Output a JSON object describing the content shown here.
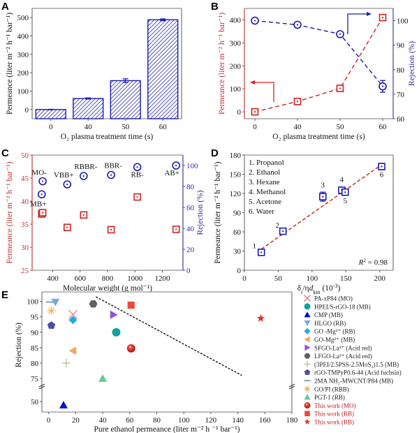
{
  "chart_data": [
    {
      "id": "A",
      "type": "bar",
      "panel_label": "A",
      "categories": [
        "0",
        "40",
        "50",
        "60"
      ],
      "values": [
        0,
        60,
        157,
        488
      ],
      "errors": [
        2,
        3,
        10,
        5
      ],
      "xlabel": "O₂ plasma treatment time (s)",
      "ylabel": "Permeance (liter m⁻² h⁻¹ bar⁻¹)",
      "ylim": [
        -50,
        550
      ],
      "yticks": [
        0,
        100,
        200,
        300,
        400,
        500
      ],
      "color": "#1a1ab0",
      "fill": "hatched"
    },
    {
      "id": "B",
      "type": "line",
      "panel_label": "B",
      "x": [
        "0",
        "40",
        "50",
        "60"
      ],
      "xlabel": "O₂ plasma treatment time (s)",
      "ylabel": "Permeance (liter m⁻² h⁻¹ bar⁻¹)",
      "ylabel_right": "Rejection (%)",
      "ylim": [
        -30,
        450
      ],
      "ylim_right": [
        60,
        105
      ],
      "yticks": [
        0,
        100,
        200,
        300,
        400
      ],
      "yticks_right": [
        60,
        70,
        80,
        90,
        100
      ],
      "series": [
        {
          "name": "Permeance",
          "axis": "left",
          "values": [
            0,
            45,
            102,
            410
          ],
          "errors": [
            0,
            3,
            5,
            0
          ],
          "color": "#d02020",
          "marker": "square-open"
        },
        {
          "name": "Rejection",
          "axis": "right",
          "values": [
            100,
            98.3,
            94.5,
            73.2
          ],
          "errors": [
            0,
            0.3,
            0.5,
            2.4
          ],
          "color": "#1a1aa0",
          "marker": "circle-open"
        }
      ]
    },
    {
      "id": "C",
      "type": "scatter",
      "panel_label": "C",
      "xlabel": "Molecular weight (g mol⁻¹)",
      "ylabel": "Permeance (liter m⁻² h⁻¹ bar⁻¹)",
      "ylabel_right": "Rejection (%)",
      "xlim": [
        250,
        1350
      ],
      "xticks": [
        400,
        600,
        800,
        1000,
        1200
      ],
      "ylim": [
        25,
        50
      ],
      "yticks": [
        25,
        30,
        35,
        40,
        45,
        50
      ],
      "ylim_right": [
        0,
        110
      ],
      "yticks_right": [
        0,
        20,
        40,
        60,
        80,
        100
      ],
      "series": [
        {
          "name": "Permeance",
          "axis": "left",
          "color": "#d02020",
          "marker": "square-open",
          "points": [
            [
              320,
              37.2
            ],
            [
              327,
              37.5
            ],
            [
              506,
              34.3
            ],
            [
              626,
              37.0
            ],
            [
              826,
              33.8
            ],
            [
              1017,
              40.9
            ],
            [
              1300,
              33.9
            ]
          ]
        },
        {
          "name": "Rejection",
          "axis": "right",
          "color": "#1a1aa0",
          "marker": "circle-open",
          "points": [
            [
              320,
              72.5
            ],
            [
              327,
              85
            ],
            [
              506,
              82
            ],
            [
              626,
              90
            ],
            [
              826,
              91
            ],
            [
              1017,
              98.5
            ],
            [
              1300,
              100
            ]
          ]
        }
      ],
      "annotations": [
        {
          "text": "MO-",
          "x": 327,
          "y_right": 85
        },
        {
          "text": "MB+",
          "x": 320,
          "y_right": 72.5
        },
        {
          "text": "VBB+",
          "x": 506,
          "y_right": 82
        },
        {
          "text": "RBBR-",
          "x": 626,
          "y_right": 90
        },
        {
          "text": "BBR-",
          "x": 826,
          "y_right": 91
        },
        {
          "text": "RB-",
          "x": 1017,
          "y_right": 98.5
        },
        {
          "text": "AB+",
          "x": 1300,
          "y_right": 100
        }
      ]
    },
    {
      "id": "D",
      "type": "scatter",
      "panel_label": "D",
      "xlabel": "δ/ηd (10⁻³)",
      "xlabel_main": "δ",
      "xlabel_sub1": "t",
      "xlabel_mid": "/η",
      "xlabel_italic": "d",
      "xlabel_sub2": "kin",
      "xlabel_tail": " (10",
      "xlabel_sup": "-3",
      "xlabel_end": ")",
      "ylabel": "Permeance (liter m⁻² h⁻¹ bar⁻¹)",
      "xlim": [
        0,
        220
      ],
      "xticks": [
        0,
        50,
        100,
        150,
        200
      ],
      "ylim": [
        0,
        180
      ],
      "yticks": [
        0,
        30,
        60,
        90,
        120,
        150,
        180
      ],
      "color": "#1a1ab0",
      "fit_color": "#c02020",
      "fit_line": [
        [
          25,
          33
        ],
        [
          203,
          165
        ]
      ],
      "r2_label": "R",
      "r2_value": " = 0.98",
      "points": [
        {
          "id": "1",
          "x": 25,
          "y": 28,
          "err": 3
        },
        {
          "id": "2",
          "x": 57,
          "y": 61,
          "err": 2
        },
        {
          "id": "3",
          "x": 116,
          "y": 115,
          "err": 7
        },
        {
          "id": "4",
          "x": 144,
          "y": 125,
          "err": 4
        },
        {
          "id": "5",
          "x": 149,
          "y": 122,
          "err": 5
        },
        {
          "id": "6",
          "x": 203,
          "y": 162,
          "err": 5
        }
      ],
      "legend": [
        "1. Propanol",
        "2. Ethanol",
        "3. Hexane",
        "4. Methanol",
        "5. Acetone",
        "6. Water"
      ]
    },
    {
      "id": "E",
      "type": "scatter",
      "panel_label": "E",
      "xlabel": "Pure ethanol permeance (liter m⁻² h ⁻¹ bar⁻¹)",
      "ylabel": "Rejection (%)",
      "xlim": [
        -5,
        180
      ],
      "xticks": [
        0,
        20,
        40,
        60,
        80,
        100,
        120,
        140,
        160,
        180
      ],
      "yticks": [
        50,
        75,
        80,
        85,
        90,
        95,
        100
      ],
      "y_axis_break": [
        50,
        75
      ],
      "trend_line": [
        [
          35,
          101.5
        ],
        [
          143,
          76
        ]
      ],
      "legend_position": "right",
      "points": [
        {
          "label": "PA-xP84 (MO)",
          "x": 18,
          "y": 95.8,
          "marker": "x",
          "color": "#e08070"
        },
        {
          "label": "HPEI/S-rGO-18 (MB)",
          "x": 50,
          "y": 90,
          "marker": "circle",
          "color": "#10a0a0"
        },
        {
          "label": "CMP (MB)",
          "x": 11,
          "y": 49,
          "marker": "triangle-up",
          "color": "#0010d0"
        },
        {
          "label": "HLGO (RB)",
          "x": 5,
          "y": 99.8,
          "marker": "triangle-down",
          "color": "#7aa8d8"
        },
        {
          "label": "GO -Mg²⁺ (RB)",
          "x": 18,
          "y": 94,
          "marker": "diamond",
          "color": "#20a8e8"
        },
        {
          "label": "GO-Mg²⁺ (MB)",
          "x": 18,
          "y": 84,
          "marker": "triangle-left",
          "color": "#f0a860"
        },
        {
          "label": "SFGO-La³⁺ (Acid red)",
          "x": 48,
          "y": 95.7,
          "marker": "triangle-right",
          "color": "#9050e0"
        },
        {
          "label": "LFGO-La³⁺ (Acid red)",
          "x": 33,
          "y": 99.2,
          "marker": "hexagon",
          "color": "#606060"
        },
        {
          "label": "(3PEI/2.5PSS-2.5MoS₂)1.5 (MB)",
          "x": 13,
          "y": 80,
          "marker": "plus",
          "color": "#b0c090"
        },
        {
          "label": "rGO-TMPyP0.6-44 (Acid fuchsin)",
          "x": 2,
          "y": 92.2,
          "marker": "pentagon",
          "color": "#5050a0"
        },
        {
          "label": "2MA NH₂-MWCNT/P84 (MB)",
          "x": 1,
          "y": 99.8,
          "marker": "dash",
          "color": "#70a0c0"
        },
        {
          "label": "GO/PI (RBB)",
          "x": 2,
          "y": 97,
          "marker": "asterisk",
          "color": "#f0b060"
        },
        {
          "label": "PGT-1 (RB)",
          "x": 40,
          "y": 75,
          "marker": "triangle-up",
          "color": "#60c898"
        },
        {
          "label": "This work (MO)",
          "x": 61,
          "y": 84.8,
          "marker": "sphere",
          "color": "#e02818",
          "highlight": true
        },
        {
          "label": "This work (RB)",
          "x": 61,
          "y": 98.8,
          "marker": "square",
          "color": "#f04838",
          "highlight": true
        },
        {
          "label": "This work (RB)",
          "x": 157,
          "y": 94.5,
          "marker": "star",
          "color": "#e03020",
          "highlight": true
        }
      ]
    }
  ]
}
